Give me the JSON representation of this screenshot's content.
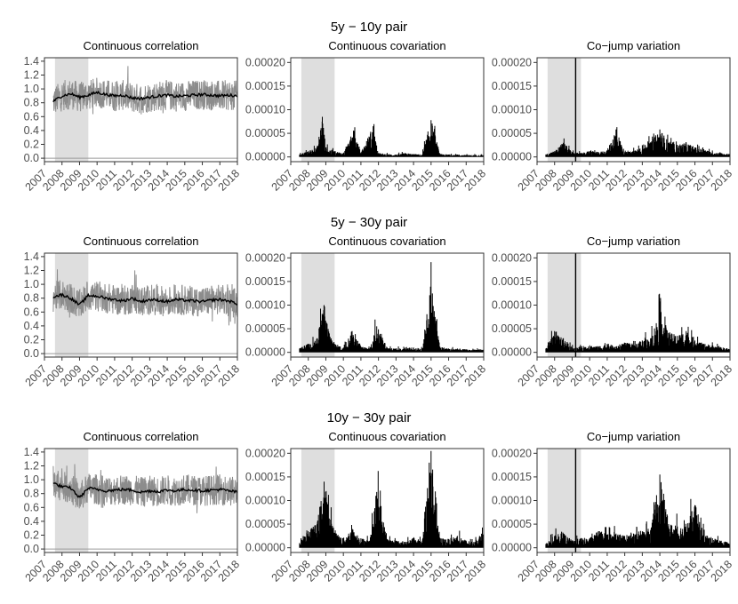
{
  "chart_data": [
    {
      "type": "line",
      "row_title": "5y − 10y pair",
      "title": "Continuous correlation",
      "x_ticks": [
        "2007",
        "2008",
        "2009",
        "2010",
        "2011",
        "2012",
        "2013",
        "2014",
        "2015",
        "2016",
        "2017",
        "2018"
      ],
      "y_ticks": [
        "0.0",
        "0.2",
        "0.4",
        "0.6",
        "0.8",
        "1.0",
        "1.2",
        "1.4"
      ],
      "xlim": [
        2007.0,
        2018.0
      ],
      "ylim": [
        -0.05,
        1.45
      ],
      "shade": [
        [
          2007.6,
          2009.5
        ]
      ],
      "hline": 0.0,
      "grid": false,
      "series": [
        {
          "role": "daily",
          "color": "#8c8c8c",
          "x": [
            2007.5,
            2008.0,
            2008.5,
            2009.0,
            2009.5,
            2010.0,
            2010.5,
            2011.0,
            2011.5,
            2012.0,
            2012.5,
            2013.0,
            2013.5,
            2014.0,
            2014.5,
            2015.0,
            2015.5,
            2016.0,
            2016.5,
            2017.0,
            2017.5,
            2018.0
          ],
          "y": [
            0.82,
            0.9,
            0.93,
            0.88,
            0.91,
            0.95,
            0.92,
            0.9,
            0.91,
            0.87,
            0.86,
            0.88,
            0.9,
            0.91,
            0.89,
            0.9,
            0.91,
            0.92,
            0.91,
            0.9,
            0.91,
            0.9
          ]
        },
        {
          "role": "smoothed",
          "color": "#000000",
          "x": [
            2007.5,
            2008.0,
            2008.5,
            2009.0,
            2009.5,
            2010.0,
            2010.5,
            2011.0,
            2011.5,
            2012.0,
            2012.5,
            2013.0,
            2013.5,
            2014.0,
            2014.5,
            2015.0,
            2015.5,
            2016.0,
            2016.5,
            2017.0,
            2017.5,
            2018.0
          ],
          "y": [
            0.82,
            0.9,
            0.93,
            0.88,
            0.91,
            0.95,
            0.92,
            0.9,
            0.91,
            0.87,
            0.86,
            0.88,
            0.9,
            0.91,
            0.89,
            0.9,
            0.91,
            0.92,
            0.91,
            0.9,
            0.91,
            0.9
          ]
        }
      ]
    },
    {
      "type": "line",
      "row_title": "",
      "title": "Continuous covariation",
      "x_ticks": [
        "2007",
        "2008",
        "2009",
        "2010",
        "2011",
        "2012",
        "2013",
        "2014",
        "2015",
        "2016",
        "2017",
        "2018"
      ],
      "y_ticks": [
        "0.00000",
        "0.00005",
        "0.00010",
        "0.00015",
        "0.00020"
      ],
      "xlim": [
        2007.0,
        2018.0
      ],
      "ylim": [
        -1e-05,
        0.00021
      ],
      "shade": [
        [
          2007.6,
          2009.5
        ]
      ],
      "grid": false,
      "series": [
        {
          "role": "daily",
          "color": "#000000",
          "x": [
            2007.5,
            2008.0,
            2008.5,
            2008.8,
            2009.0,
            2009.5,
            2010.0,
            2010.6,
            2011.0,
            2011.7,
            2012.0,
            2012.5,
            2013.0,
            2013.5,
            2014.0,
            2014.5,
            2015.0,
            2015.5,
            2016.0,
            2016.5,
            2017.0,
            2017.5,
            2018.0
          ],
          "y": [
            5e-06,
            1.2e-05,
            2e-05,
            8.5e-05,
            2e-05,
            1.2e-05,
            8e-06,
            5.5e-05,
            8e-06,
            6.5e-05,
            8e-06,
            6e-06,
            5e-06,
            8e-06,
            6e-06,
            5e-06,
            7.8e-05,
            6e-06,
            5e-06,
            5e-06,
            4e-06,
            4e-06,
            4e-06
          ]
        }
      ]
    },
    {
      "type": "line",
      "row_title": "",
      "title": "Co−jump variation",
      "x_ticks": [
        "2007",
        "2008",
        "2009",
        "2010",
        "2011",
        "2012",
        "2013",
        "2014",
        "2015",
        "2016",
        "2017",
        "2018"
      ],
      "y_ticks": [
        "0.00000",
        "0.00005",
        "0.00010",
        "0.00015",
        "0.00020"
      ],
      "xlim": [
        2007.0,
        2018.0
      ],
      "ylim": [
        -1e-05,
        0.00021
      ],
      "shade": [
        [
          2007.6,
          2009.5
        ]
      ],
      "vline": 2009.2,
      "grid": false,
      "series": [
        {
          "role": "daily",
          "color": "#000000",
          "x": [
            2007.5,
            2008.0,
            2008.5,
            2009.0,
            2009.5,
            2010.0,
            2010.5,
            2011.0,
            2011.5,
            2012.0,
            2012.5,
            2013.0,
            2013.5,
            2014.0,
            2014.5,
            2015.0,
            2015.5,
            2016.0,
            2016.5,
            2017.0,
            2017.5,
            2018.0
          ],
          "y": [
            5e-06,
            1.2e-05,
            3e-05,
            1e-05,
            8e-06,
            1.2e-05,
            1e-05,
            1.4e-05,
            5.8e-05,
            1e-05,
            1.2e-05,
            2.5e-05,
            3e-05,
            5.8e-05,
            3e-05,
            2.5e-05,
            3e-05,
            2e-05,
            1.5e-05,
            1e-05,
            8e-06,
            6e-06
          ]
        }
      ]
    },
    {
      "type": "line",
      "row_title": "5y − 30y pair",
      "title": "Continuous correlation",
      "x_ticks": [
        "2007",
        "2008",
        "2009",
        "2010",
        "2011",
        "2012",
        "2013",
        "2014",
        "2015",
        "2016",
        "2017",
        "2018"
      ],
      "y_ticks": [
        "0.0",
        "0.2",
        "0.4",
        "0.6",
        "0.8",
        "1.0",
        "1.2",
        "1.4"
      ],
      "xlim": [
        2007.0,
        2018.0
      ],
      "ylim": [
        -0.05,
        1.45
      ],
      "shade": [
        [
          2007.6,
          2009.5
        ]
      ],
      "hline": 0.0,
      "grid": false,
      "series": [
        {
          "role": "daily",
          "color": "#8c8c8c",
          "x": [
            2007.5,
            2008.0,
            2008.5,
            2009.0,
            2009.5,
            2010.0,
            2010.5,
            2011.0,
            2011.5,
            2012.0,
            2012.5,
            2013.0,
            2013.5,
            2014.0,
            2014.5,
            2015.0,
            2015.5,
            2016.0,
            2016.5,
            2017.0,
            2017.5,
            2018.0
          ],
          "y": [
            0.82,
            0.85,
            0.8,
            0.7,
            0.84,
            0.83,
            0.8,
            0.78,
            0.76,
            0.8,
            0.75,
            0.78,
            0.77,
            0.75,
            0.78,
            0.77,
            0.76,
            0.75,
            0.77,
            0.78,
            0.76,
            0.72
          ]
        },
        {
          "role": "smoothed",
          "color": "#000000",
          "x": [
            2007.5,
            2008.0,
            2008.5,
            2009.0,
            2009.5,
            2010.0,
            2010.5,
            2011.0,
            2011.5,
            2012.0,
            2012.5,
            2013.0,
            2013.5,
            2014.0,
            2014.5,
            2015.0,
            2015.5,
            2016.0,
            2016.5,
            2017.0,
            2017.5,
            2018.0
          ],
          "y": [
            0.82,
            0.85,
            0.8,
            0.7,
            0.84,
            0.83,
            0.8,
            0.78,
            0.76,
            0.8,
            0.75,
            0.78,
            0.77,
            0.75,
            0.78,
            0.77,
            0.76,
            0.75,
            0.77,
            0.78,
            0.76,
            0.72
          ]
        }
      ]
    },
    {
      "type": "line",
      "row_title": "",
      "title": "Continuous covariation",
      "x_ticks": [
        "2007",
        "2008",
        "2009",
        "2010",
        "2011",
        "2012",
        "2013",
        "2014",
        "2015",
        "2016",
        "2017",
        "2018"
      ],
      "y_ticks": [
        "0.00000",
        "0.00005",
        "0.00010",
        "0.00015",
        "0.00020"
      ],
      "xlim": [
        2007.0,
        2018.0
      ],
      "ylim": [
        -1e-05,
        0.00021
      ],
      "shade": [
        [
          2007.6,
          2009.5
        ]
      ],
      "grid": false,
      "series": [
        {
          "role": "daily",
          "color": "#000000",
          "x": [
            2007.5,
            2008.0,
            2008.5,
            2008.9,
            2009.2,
            2009.5,
            2010.0,
            2010.5,
            2011.0,
            2011.5,
            2011.9,
            2012.5,
            2013.0,
            2013.5,
            2014.0,
            2014.5,
            2015.0,
            2015.5,
            2016.0,
            2016.5,
            2017.0,
            2017.5,
            2018.0
          ],
          "y": [
            8e-06,
            1.8e-05,
            3e-05,
            0.0001,
            4e-05,
            1.8e-05,
            1e-05,
            4.5e-05,
            1.2e-05,
            8e-06,
            5.5e-05,
            1e-05,
            8e-06,
            8e-06,
            1e-05,
            8e-06,
            0.000147,
            1.2e-05,
            8e-06,
            8e-06,
            6e-06,
            6e-06,
            6e-06
          ]
        }
      ]
    },
    {
      "type": "line",
      "row_title": "",
      "title": "Co−jump variation",
      "x_ticks": [
        "2007",
        "2008",
        "2009",
        "2010",
        "2011",
        "2012",
        "2013",
        "2014",
        "2015",
        "2016",
        "2017",
        "2018"
      ],
      "y_ticks": [
        "0.00000",
        "0.00005",
        "0.00010",
        "0.00015",
        "0.00020"
      ],
      "xlim": [
        2007.0,
        2018.0
      ],
      "ylim": [
        -1e-05,
        0.00021
      ],
      "shade": [
        [
          2007.6,
          2009.5
        ]
      ],
      "vline": 2009.2,
      "grid": false,
      "series": [
        {
          "role": "daily",
          "color": "#000000",
          "x": [
            2007.5,
            2008.0,
            2008.5,
            2009.0,
            2009.5,
            2010.0,
            2010.5,
            2011.0,
            2011.5,
            2012.0,
            2012.5,
            2013.0,
            2013.5,
            2014.0,
            2014.5,
            2015.0,
            2015.5,
            2016.0,
            2016.5,
            2017.0,
            2017.5,
            2018.0
          ],
          "y": [
            8e-06,
            4.5e-05,
            3e-05,
            1e-05,
            1.2e-05,
            1.5e-05,
            1.2e-05,
            1.8e-05,
            1.2e-05,
            2e-05,
            1.5e-05,
            2.5e-05,
            3e-05,
            8.8e-05,
            4e-05,
            3.5e-05,
            4.5e-05,
            2.5e-05,
            1.8e-05,
            1.5e-05,
            1e-05,
            8e-06
          ]
        }
      ]
    },
    {
      "type": "line",
      "row_title": "10y − 30y pair",
      "title": "Continuous correlation",
      "x_ticks": [
        "2007",
        "2008",
        "2009",
        "2010",
        "2011",
        "2012",
        "2013",
        "2014",
        "2015",
        "2016",
        "2017",
        "2018"
      ],
      "y_ticks": [
        "0.0",
        "0.2",
        "0.4",
        "0.6",
        "0.8",
        "1.0",
        "1.2",
        "1.4"
      ],
      "xlim": [
        2007.0,
        2018.0
      ],
      "ylim": [
        -0.05,
        1.45
      ],
      "shade": [
        [
          2007.6,
          2009.5
        ]
      ],
      "hline": 0.0,
      "grid": false,
      "series": [
        {
          "role": "daily",
          "color": "#8c8c8c",
          "x": [
            2007.5,
            2008.0,
            2008.5,
            2009.0,
            2009.5,
            2010.0,
            2010.5,
            2011.0,
            2011.5,
            2012.0,
            2012.5,
            2013.0,
            2013.5,
            2014.0,
            2014.5,
            2015.0,
            2015.5,
            2016.0,
            2016.5,
            2017.0,
            2017.5,
            2018.0
          ],
          "y": [
            0.95,
            0.9,
            0.88,
            0.74,
            0.88,
            0.86,
            0.84,
            0.85,
            0.86,
            0.85,
            0.82,
            0.84,
            0.83,
            0.85,
            0.84,
            0.86,
            0.85,
            0.84,
            0.85,
            0.86,
            0.84,
            0.82
          ]
        },
        {
          "role": "smoothed",
          "color": "#000000",
          "x": [
            2007.5,
            2008.0,
            2008.5,
            2009.0,
            2009.5,
            2010.0,
            2010.5,
            2011.0,
            2011.5,
            2012.0,
            2012.5,
            2013.0,
            2013.5,
            2014.0,
            2014.5,
            2015.0,
            2015.5,
            2016.0,
            2016.5,
            2017.0,
            2017.5,
            2018.0
          ],
          "y": [
            0.95,
            0.9,
            0.88,
            0.74,
            0.88,
            0.86,
            0.84,
            0.85,
            0.86,
            0.85,
            0.82,
            0.84,
            0.83,
            0.85,
            0.84,
            0.86,
            0.85,
            0.84,
            0.85,
            0.86,
            0.84,
            0.82
          ]
        }
      ]
    },
    {
      "type": "line",
      "row_title": "",
      "title": "Continuous covariation",
      "x_ticks": [
        "2007",
        "2008",
        "2009",
        "2010",
        "2011",
        "2012",
        "2013",
        "2014",
        "2015",
        "2016",
        "2017",
        "2018"
      ],
      "y_ticks": [
        "0.00000",
        "0.00005",
        "0.00010",
        "0.00015",
        "0.00020"
      ],
      "xlim": [
        2007.0,
        2018.0
      ],
      "ylim": [
        -1e-05,
        0.00021
      ],
      "shade": [
        [
          2007.6,
          2009.5
        ]
      ],
      "grid": false,
      "series": [
        {
          "role": "daily",
          "color": "#000000",
          "x": [
            2007.5,
            2008.0,
            2008.5,
            2008.9,
            2009.3,
            2009.6,
            2010.0,
            2010.5,
            2011.0,
            2011.5,
            2011.9,
            2012.5,
            2013.0,
            2013.5,
            2014.0,
            2014.5,
            2015.0,
            2015.5,
            2016.0,
            2016.5,
            2017.0,
            2017.5,
            2018.0
          ],
          "y": [
            1e-05,
            3.5e-05,
            5e-05,
            0.00014,
            6e-05,
            3e-05,
            2e-05,
            4e-05,
            2e-05,
            1.5e-05,
            0.000118,
            1.8e-05,
            1.5e-05,
            1.2e-05,
            2e-05,
            1.5e-05,
            0.000205,
            2e-05,
            1.8e-05,
            2.5e-05,
            1.5e-05,
            1.2e-05,
            3.5e-05
          ]
        }
      ]
    },
    {
      "type": "line",
      "row_title": "",
      "title": "Co−jump variation",
      "x_ticks": [
        "2007",
        "2008",
        "2009",
        "2010",
        "2011",
        "2012",
        "2013",
        "2014",
        "2015",
        "2016",
        "2017",
        "2018"
      ],
      "y_ticks": [
        "0.00000",
        "0.00005",
        "0.00010",
        "0.00015",
        "0.00020"
      ],
      "xlim": [
        2007.0,
        2018.0
      ],
      "ylim": [
        -1e-05,
        0.00021
      ],
      "shade": [
        [
          2007.6,
          2009.5
        ]
      ],
      "vline": 2009.2,
      "grid": false,
      "series": [
        {
          "role": "daily",
          "color": "#000000",
          "x": [
            2007.5,
            2008.0,
            2008.5,
            2009.0,
            2009.5,
            2010.0,
            2010.5,
            2011.0,
            2011.5,
            2012.0,
            2012.5,
            2013.0,
            2013.5,
            2014.0,
            2014.5,
            2015.0,
            2015.5,
            2016.0,
            2016.5,
            2017.0,
            2017.5,
            2018.0
          ],
          "y": [
            8e-06,
            2.5e-05,
            3e-05,
            1.5e-05,
            2e-05,
            2e-05,
            3.5e-05,
            2.8e-05,
            3e-05,
            2.5e-05,
            3e-05,
            3.5e-05,
            4e-05,
            0.000155,
            5e-05,
            4.5e-05,
            4.5e-05,
            9e-05,
            3e-05,
            2e-05,
            1.5e-05,
            1e-05
          ]
        }
      ]
    }
  ]
}
